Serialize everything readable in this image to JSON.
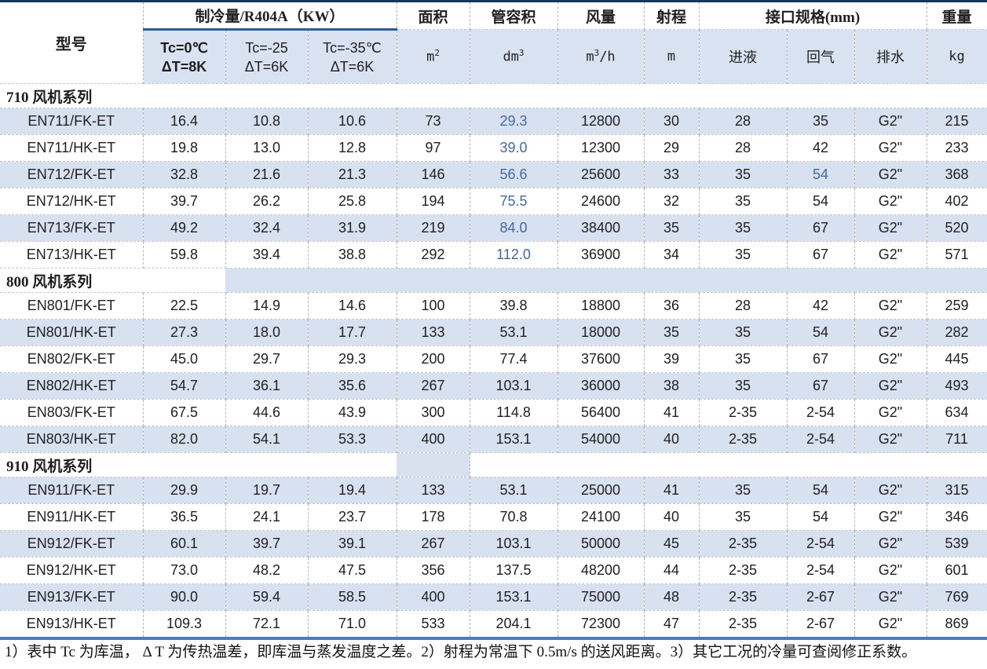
{
  "colors": {
    "stripe": "#D8E1F0",
    "header_fill": "#D9E2F1",
    "accent_text": "#44699D",
    "top_border": "#17375D",
    "group_underline": "#2E5B9B",
    "bottom_rule": "#4C7DBB"
  },
  "table": {
    "column_keys": [
      "model",
      "tc0",
      "tc25",
      "tc35",
      "area",
      "tube",
      "air",
      "throw",
      "liquid",
      "gas",
      "drain",
      "weight"
    ],
    "header": {
      "model": "型号",
      "cooling_group": "制冷量/R404A（KW）",
      "cooling_subs": [
        {
          "line1": "Tc=0℃",
          "line2": "ΔT=8K",
          "bold": true
        },
        {
          "line1": "Tc=-25",
          "line2": "ΔT=6K",
          "bold": false
        },
        {
          "line1": "Tc=-35℃",
          "line2": "ΔT=6K",
          "bold": false
        }
      ],
      "area": {
        "label": "面积",
        "unit_base": "m",
        "unit_sup": "2",
        "unit_suffix": ""
      },
      "tube": {
        "label": "管容积",
        "unit_base": "dm",
        "unit_sup": "3",
        "unit_suffix": ""
      },
      "air": {
        "label": "风量",
        "unit_base": "m",
        "unit_sup": "3",
        "unit_suffix": "/h"
      },
      "throw": {
        "label": "射程",
        "unit_base": "m",
        "unit_sup": "",
        "unit_suffix": ""
      },
      "conn": {
        "label": "接口规格(mm)",
        "subs": [
          "进液",
          "回气",
          "排水"
        ]
      },
      "weight": {
        "label": "重量",
        "unit_base": "kg",
        "unit_sup": "",
        "unit_suffix": ""
      }
    },
    "sections": [
      {
        "title": "710 风机系列",
        "title_fill": "none",
        "rows": [
          {
            "cells": [
              "EN711/FK-ET",
              "16.4",
              "10.8",
              "10.6",
              "73",
              "29.3",
              "12800",
              "30",
              "28",
              "35",
              "G2\"",
              "215"
            ],
            "blue": [
              5
            ]
          },
          {
            "cells": [
              "EN711/HK-ET",
              "19.8",
              "13.0",
              "12.8",
              "97",
              "39.0",
              "12300",
              "29",
              "28",
              "42",
              "G2\"",
              "233"
            ],
            "blue": [
              5
            ]
          },
          {
            "cells": [
              "EN712/FK-ET",
              "32.8",
              "21.6",
              "21.3",
              "146",
              "56.6",
              "25600",
              "33",
              "35",
              "54",
              "G2\"",
              "368"
            ],
            "blue": [
              5,
              9
            ]
          },
          {
            "cells": [
              "EN712/HK-ET",
              "39.7",
              "26.2",
              "25.8",
              "194",
              "75.5",
              "24600",
              "32",
              "35",
              "54",
              "G2\"",
              "402"
            ],
            "blue": [
              5
            ]
          },
          {
            "cells": [
              "EN713/FK-ET",
              "49.2",
              "32.4",
              "31.9",
              "219",
              "84.0",
              "38400",
              "35",
              "35",
              "67",
              "G2\"",
              "520"
            ],
            "blue": [
              5
            ]
          },
          {
            "cells": [
              "EN713/HK-ET",
              "59.8",
              "39.4",
              "38.8",
              "292",
              "112.0",
              "36900",
              "34",
              "35",
              "67",
              "G2\"",
              "571"
            ],
            "blue": [
              5
            ]
          }
        ]
      },
      {
        "title": "800 风机系列",
        "title_fill": "right",
        "rows": [
          {
            "cells": [
              "EN801/FK-ET",
              "22.5",
              "14.9",
              "14.6",
              "100",
              "39.8",
              "18800",
              "36",
              "28",
              "42",
              "G2\"",
              "259"
            ],
            "blue": []
          },
          {
            "cells": [
              "EN801/HK-ET",
              "27.3",
              "18.0",
              "17.7",
              "133",
              "53.1",
              "18000",
              "35",
              "35",
              "54",
              "G2\"",
              "282"
            ],
            "blue": []
          },
          {
            "cells": [
              "EN802/FK-ET",
              "45.0",
              "29.7",
              "29.3",
              "200",
              "77.4",
              "37600",
              "39",
              "35",
              "67",
              "G2\"",
              "445"
            ],
            "blue": []
          },
          {
            "cells": [
              "EN802/HK-ET",
              "54.7",
              "36.1",
              "35.6",
              "267",
              "103.1",
              "36000",
              "38",
              "35",
              "67",
              "G2\"",
              "493"
            ],
            "blue": []
          },
          {
            "cells": [
              "EN803/FK-ET",
              "67.5",
              "44.6",
              "43.9",
              "300",
              "114.8",
              "56400",
              "41",
              "2-35",
              "2-54",
              "G2\"",
              "634"
            ],
            "blue": []
          },
          {
            "cells": [
              "EN803/HK-ET",
              "82.0",
              "54.1",
              "53.3",
              "400",
              "153.1",
              "54000",
              "40",
              "2-35",
              "2-54",
              "G2\"",
              "711"
            ],
            "blue": []
          }
        ]
      },
      {
        "title": "910 风机系列",
        "title_fill": "area",
        "rows": [
          {
            "cells": [
              "EN911/FK-ET",
              "29.9",
              "19.7",
              "19.4",
              "133",
              "53.1",
              "25000",
              "41",
              "35",
              "54",
              "G2\"",
              "315"
            ],
            "blue": []
          },
          {
            "cells": [
              "EN911/HK-ET",
              "36.5",
              "24.1",
              "23.7",
              "178",
              "70.8",
              "24100",
              "40",
              "35",
              "54",
              "G2\"",
              "346"
            ],
            "blue": []
          },
          {
            "cells": [
              "EN912/FK-ET",
              "60.1",
              "39.7",
              "39.1",
              "267",
              "103.1",
              "50000",
              "45",
              "2-35",
              "2-54",
              "G2\"",
              "539"
            ],
            "blue": []
          },
          {
            "cells": [
              "EN912/HK-ET",
              "73.0",
              "48.2",
              "47.5",
              "356",
              "137.5",
              "48200",
              "44",
              "2-35",
              "2-54",
              "G2\"",
              "601"
            ],
            "blue": []
          },
          {
            "cells": [
              "EN913/FK-ET",
              "90.0",
              "59.4",
              "58.5",
              "400",
              "153.1",
              "75000",
              "48",
              "2-35",
              "2-67",
              "G2\"",
              "769"
            ],
            "blue": []
          },
          {
            "cells": [
              "EN913/HK-ET",
              "109.3",
              "72.1",
              "71.0",
              "533",
              "204.1",
              "72300",
              "47",
              "2-35",
              "2-67",
              "G2\"",
              "869"
            ],
            "blue": []
          }
        ]
      }
    ]
  },
  "footnote": "1）表中 Tc 为库温， Δ T 为传热温差，即库温与蒸发温度之差。2）射程为常温下 0.5m/s 的送风距离。3）其它工况的冷量可查阅修正系数。"
}
